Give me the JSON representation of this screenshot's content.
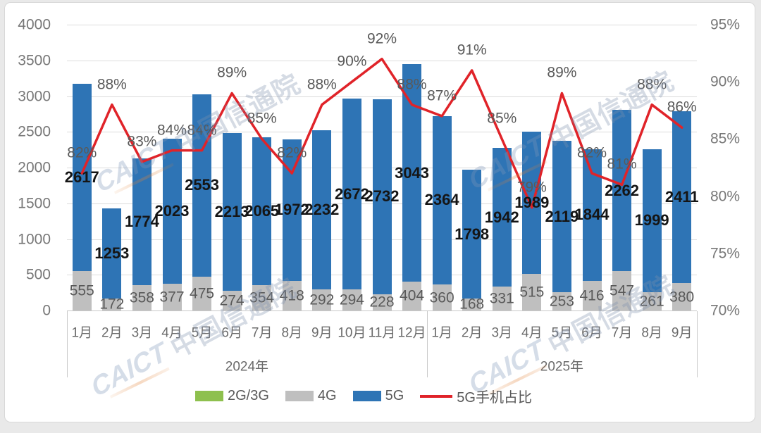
{
  "watermark": {
    "text_latin": "CAICT",
    "text_cn": "中国信通院"
  },
  "chart_data": {
    "type": "combo: stacked bar (left axis, 万部) + line (right axis, %)",
    "categories": [
      "1月",
      "2月",
      "3月",
      "4月",
      "5月",
      "6月",
      "7月",
      "8月",
      "9月",
      "10月",
      "11月",
      "12月",
      "1月",
      "2月",
      "3月",
      "4月",
      "5月",
      "6月",
      "7月",
      "8月",
      "9月"
    ],
    "category_groups": [
      {
        "label": "2024年",
        "count": 12
      },
      {
        "label": "2025年",
        "count": 9
      }
    ],
    "series": [
      {
        "name": "2G/3G",
        "chart": "bar",
        "color": "#8ec04e",
        "values": [
          0,
          0,
          0,
          0,
          0,
          0,
          0,
          0,
          0,
          0,
          0,
          0,
          0,
          0,
          0,
          0,
          0,
          0,
          0,
          0,
          0
        ]
      },
      {
        "name": "4G",
        "chart": "bar",
        "color": "#bfbfbf",
        "values": [
          555,
          172,
          358,
          377,
          475,
          274,
          354,
          418,
          292,
          294,
          228,
          404,
          360,
          168,
          331,
          515,
          253,
          416,
          547,
          261,
          380
        ]
      },
      {
        "name": "5G",
        "chart": "bar",
        "color": "#2e74b5",
        "values": [
          2617,
          1253,
          1774,
          2023,
          2553,
          2213,
          2065,
          1972,
          2232,
          2672,
          2732,
          3043,
          2364,
          1798,
          1942,
          1989,
          2119,
          1844,
          2262,
          1999,
          2411
        ]
      },
      {
        "name": "5G手机占比",
        "chart": "line",
        "axis": "right",
        "color": "#e02329",
        "values": [
          82,
          88,
          83,
          84,
          84,
          89,
          85,
          82,
          88,
          90,
          92,
          88,
          87,
          91,
          85,
          79,
          89,
          82,
          81,
          88,
          86
        ],
        "label_suffix": "%"
      }
    ],
    "left_axis": {
      "min": 0,
      "max": 4000,
      "step": 500,
      "ticks": [
        "0",
        "500",
        "1000",
        "1500",
        "2000",
        "2500",
        "3000",
        "3500",
        "4000"
      ]
    },
    "right_axis": {
      "min": 70,
      "max": 95,
      "step": 5,
      "ticks": [
        "70%",
        "75%",
        "80%",
        "85%",
        "90%",
        "95%"
      ]
    },
    "gridlines": true,
    "legend_position": "bottom"
  }
}
